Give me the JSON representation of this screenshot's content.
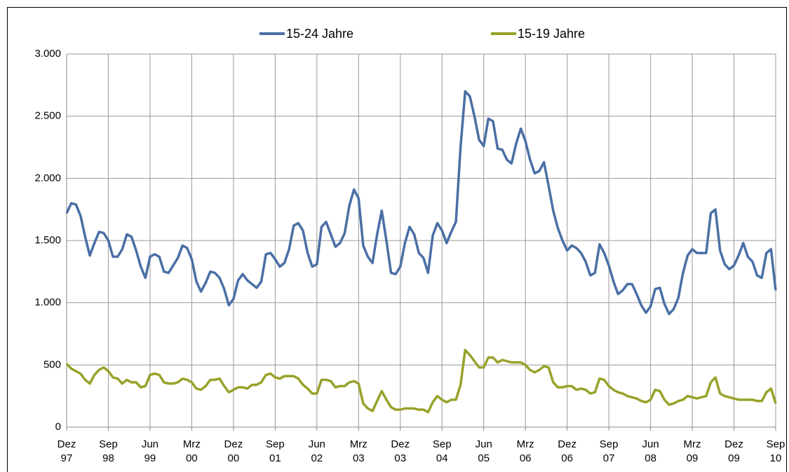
{
  "chart_data": {
    "type": "line",
    "categories": [
      "Dez 97",
      null,
      null,
      null,
      null,
      null,
      null,
      null,
      null,
      "Sep 98",
      null,
      null,
      null,
      null,
      null,
      null,
      null,
      null,
      "Jun 99",
      null,
      null,
      null,
      null,
      null,
      null,
      null,
      null,
      "Mrz 00",
      null,
      null,
      null,
      null,
      null,
      null,
      null,
      null,
      "Dez 00",
      null,
      null,
      null,
      null,
      null,
      null,
      null,
      null,
      "Sep 01",
      null,
      null,
      null,
      null,
      null,
      null,
      null,
      null,
      "Jun 02",
      null,
      null,
      null,
      null,
      null,
      null,
      null,
      null,
      "Mrz 03",
      null,
      null,
      null,
      null,
      null,
      null,
      null,
      null,
      "Dez 03",
      null,
      null,
      null,
      null,
      null,
      null,
      null,
      null,
      "Sep 04",
      null,
      null,
      null,
      null,
      null,
      null,
      null,
      null,
      "Jun 05",
      null,
      null,
      null,
      null,
      null,
      null,
      null,
      null,
      "Mrz 06",
      null,
      null,
      null,
      null,
      null,
      null,
      null,
      null,
      "Dez 06",
      null,
      null,
      null,
      null,
      null,
      null,
      null,
      null,
      "Sep 07",
      null,
      null,
      null,
      null,
      null,
      null,
      null,
      null,
      "Jun 08",
      null,
      null,
      null,
      null,
      null,
      null,
      null,
      null,
      "Mrz 09",
      null,
      null,
      null,
      null,
      null,
      null,
      null,
      null,
      "Dez 09",
      null,
      null,
      null,
      null,
      null,
      null,
      null,
      null,
      "Sep 10"
    ],
    "series": [
      {
        "name": "15-24 Jahre",
        "color": "#4a6fa5",
        "values": [
          1720,
          1800,
          1790,
          1700,
          1530,
          1380,
          1480,
          1570,
          1560,
          1500,
          1370,
          1370,
          1430,
          1550,
          1530,
          1420,
          1290,
          1200,
          1370,
          1390,
          1370,
          1250,
          1240,
          1300,
          1360,
          1460,
          1440,
          1350,
          1170,
          1090,
          1160,
          1250,
          1240,
          1200,
          1110,
          980,
          1030,
          1180,
          1230,
          1180,
          1150,
          1120,
          1170,
          1390,
          1400,
          1350,
          1290,
          1320,
          1430,
          1620,
          1640,
          1580,
          1400,
          1290,
          1310,
          1610,
          1650,
          1550,
          1450,
          1480,
          1560,
          1780,
          1910,
          1840,
          1460,
          1370,
          1320,
          1550,
          1740,
          1500,
          1240,
          1230,
          1290,
          1480,
          1610,
          1550,
          1400,
          1360,
          1240,
          1540,
          1640,
          1580,
          1480,
          1570,
          1650,
          2250,
          2700,
          2660,
          2500,
          2310,
          2260,
          2480,
          2460,
          2240,
          2230,
          2150,
          2120,
          2280,
          2400,
          2300,
          2150,
          2040,
          2060,
          2130,
          1940,
          1740,
          1600,
          1500,
          1420,
          1460,
          1440,
          1400,
          1330,
          1220,
          1240,
          1470,
          1400,
          1300,
          1170,
          1070,
          1100,
          1150,
          1150,
          1070,
          980,
          920,
          970,
          1110,
          1120,
          990,
          910,
          950,
          1040,
          1240,
          1380,
          1430,
          1400,
          1400,
          1400,
          1720,
          1750,
          1420,
          1310,
          1270,
          1300,
          1380,
          1480,
          1370,
          1330,
          1220,
          1200,
          1400,
          1430,
          1100
        ]
      },
      {
        "name": "15-19 Jahre",
        "color": "#98a22b",
        "values": [
          510,
          470,
          450,
          430,
          380,
          350,
          420,
          460,
          480,
          450,
          400,
          390,
          350,
          380,
          360,
          360,
          320,
          330,
          420,
          430,
          420,
          360,
          350,
          350,
          360,
          390,
          380,
          360,
          310,
          300,
          330,
          380,
          380,
          390,
          330,
          280,
          300,
          320,
          320,
          310,
          340,
          340,
          360,
          420,
          430,
          400,
          390,
          410,
          410,
          410,
          390,
          340,
          310,
          270,
          270,
          380,
          380,
          370,
          320,
          330,
          330,
          360,
          370,
          350,
          190,
          150,
          130,
          210,
          290,
          220,
          160,
          140,
          140,
          150,
          150,
          150,
          140,
          140,
          120,
          200,
          250,
          220,
          200,
          220,
          220,
          340,
          620,
          580,
          530,
          480,
          480,
          560,
          560,
          520,
          540,
          530,
          520,
          520,
          520,
          500,
          460,
          440,
          460,
          490,
          480,
          360,
          320,
          320,
          330,
          330,
          300,
          310,
          300,
          270,
          280,
          390,
          380,
          330,
          300,
          280,
          270,
          250,
          240,
          230,
          210,
          200,
          220,
          300,
          290,
          220,
          180,
          190,
          210,
          220,
          250,
          240,
          230,
          240,
          250,
          360,
          400,
          270,
          250,
          240,
          230,
          220,
          220,
          220,
          220,
          210,
          210,
          280,
          310,
          190
        ]
      }
    ],
    "ylim": [
      0,
      3000
    ],
    "yticks": [
      0,
      500,
      {
        "value": 1000,
        "label": "1.000"
      },
      {
        "value": 1500,
        "label": "1.500"
      },
      {
        "value": 2000,
        "label": "2.000"
      },
      {
        "value": 2500,
        "label": "2.500"
      },
      {
        "value": 3000,
        "label": "3.000"
      }
    ],
    "grid": true,
    "legend": "top"
  }
}
